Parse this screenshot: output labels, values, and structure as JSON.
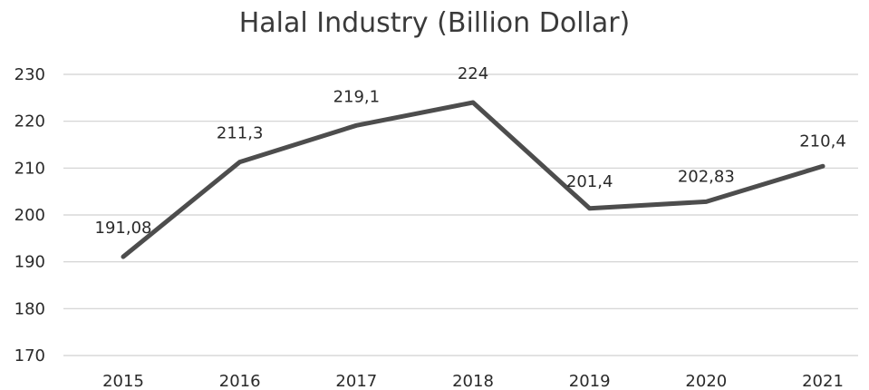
{
  "chart_data": {
    "type": "line",
    "title": "Halal Industry (Billion Dollar)",
    "categories": [
      "2015",
      "2016",
      "2017",
      "2018",
      "2019",
      "2020",
      "2021"
    ],
    "series": [
      {
        "values": [
          191.08,
          211.3,
          219.1,
          224,
          201.4,
          202.83,
          210.4
        ],
        "labels": [
          "191,08",
          "211,3",
          "219,1",
          "224",
          "201,4",
          "202,83",
          "210,4"
        ],
        "color": "#4d4d4d"
      }
    ],
    "ylim": [
      170,
      230
    ],
    "yticks": [
      "170",
      "180",
      "190",
      "200",
      "210",
      "220",
      "230"
    ],
    "grid": true,
    "gridColor": "#d0d0d0",
    "xlabel": "",
    "ylabel": ""
  }
}
